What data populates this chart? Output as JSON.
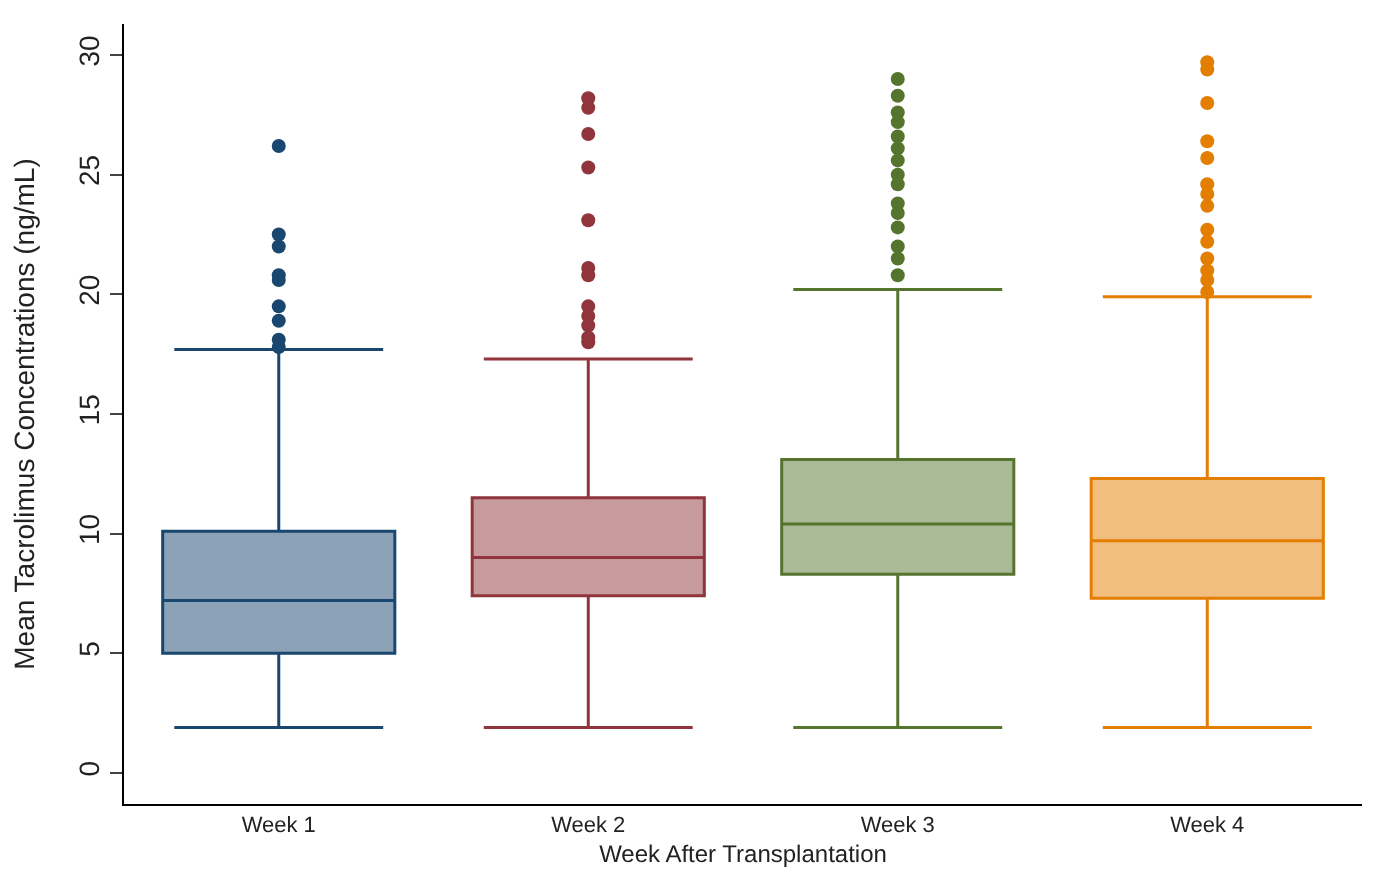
{
  "chart_data": {
    "type": "box",
    "xlabel": "Week After Transplantation",
    "ylabel": "Mean Tacrolimus Concentrations (ng/mL)",
    "categories": [
      "Week 1",
      "Week 2",
      "Week 3",
      "Week 4"
    ],
    "colors": [
      "#1a476f",
      "#90353b",
      "#55752f",
      "#e37e00"
    ],
    "boxes": [
      {
        "low": 1.9,
        "q1": 5.0,
        "median": 7.2,
        "q3": 10.1,
        "high": 17.7,
        "outliers": [
          26.2,
          22.5,
          22.0,
          20.8,
          20.6,
          19.5,
          18.9,
          18.1,
          17.8
        ]
      },
      {
        "low": 1.9,
        "q1": 7.4,
        "median": 9.0,
        "q3": 11.5,
        "high": 17.3,
        "outliers": [
          28.2,
          27.8,
          26.7,
          25.3,
          23.1,
          21.1,
          20.8,
          19.5,
          19.1,
          18.7,
          18.2,
          18.0
        ]
      },
      {
        "low": 1.9,
        "q1": 8.3,
        "median": 10.4,
        "q3": 13.1,
        "high": 20.2,
        "outliers": [
          29.0,
          28.3,
          27.6,
          27.2,
          26.6,
          26.1,
          25.6,
          25.0,
          24.6,
          23.8,
          23.4,
          22.8,
          22.0,
          21.5,
          20.8
        ]
      },
      {
        "low": 1.9,
        "q1": 7.3,
        "median": 9.7,
        "q3": 12.3,
        "high": 19.9,
        "outliers": [
          29.7,
          29.4,
          28.0,
          26.4,
          25.7,
          24.6,
          24.2,
          23.7,
          22.7,
          22.2,
          21.5,
          21.0,
          20.6,
          20.1
        ]
      }
    ],
    "ylim": [
      -1.3,
      31.3
    ],
    "yticks": [
      0,
      5,
      10,
      15,
      20,
      25,
      30
    ],
    "marker": "circle"
  }
}
